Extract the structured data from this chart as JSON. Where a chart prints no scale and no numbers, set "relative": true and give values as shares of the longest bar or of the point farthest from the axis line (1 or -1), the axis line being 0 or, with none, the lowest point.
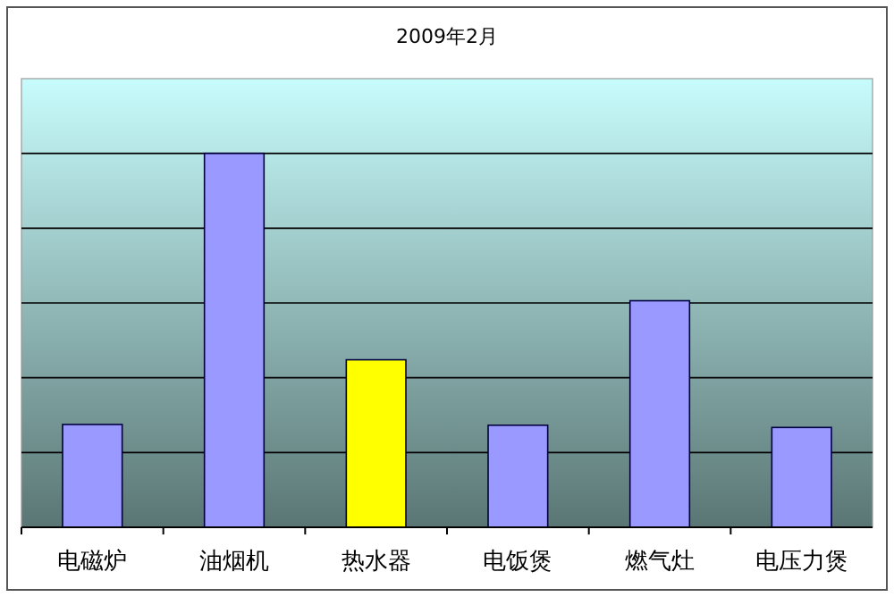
{
  "chart_data": {
    "type": "bar",
    "title": "2009年2月",
    "categories": [
      "电磁炉",
      "油烟机",
      "热水器",
      "电饭煲",
      "燃气灶",
      "电压力煲"
    ],
    "values": [
      0.275,
      1,
      0.448,
      0.273,
      0.606,
      0.267
    ],
    "colors": [
      "#9999ff",
      "#9999ff",
      "#ffff00",
      "#9999ff",
      "#9999ff",
      "#9999ff"
    ],
    "relative": true,
    "grid": "y"
  }
}
